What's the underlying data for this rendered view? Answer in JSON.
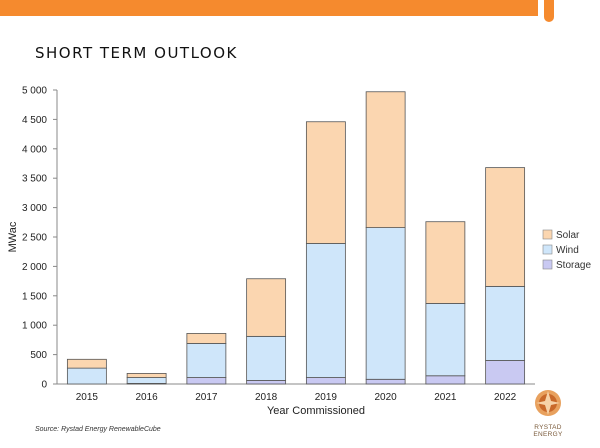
{
  "header": {
    "title": "SHORT TERM OUTLOOK"
  },
  "chart_data": {
    "type": "bar",
    "stacked": true,
    "categories": [
      "2015",
      "2016",
      "2017",
      "2018",
      "2019",
      "2020",
      "2021",
      "2022"
    ],
    "series": [
      {
        "name": "Storage",
        "color": "#c9c9f2",
        "values": [
          0,
          10,
          110,
          60,
          110,
          80,
          140,
          400
        ]
      },
      {
        "name": "Wind",
        "color": "#cfe6fa",
        "values": [
          270,
          100,
          580,
          750,
          2280,
          2580,
          1230,
          1260
        ]
      },
      {
        "name": "Solar",
        "color": "#fbd6b0",
        "values": [
          150,
          70,
          170,
          980,
          2070,
          2310,
          1390,
          2020
        ]
      }
    ],
    "xlabel": "Year Commissioned",
    "ylabel": "MWac",
    "ylim": [
      0,
      5000
    ],
    "yticks": [
      "0",
      "500",
      "1 000",
      "1 500",
      "2 000",
      "2 500",
      "3 000",
      "3 500",
      "4 000",
      "4 500",
      "5 000"
    ],
    "legend": {
      "position": "right",
      "order": [
        "Solar",
        "Wind",
        "Storage"
      ]
    },
    "grid": false
  },
  "footer": {
    "source": "Source: Rystad Energy RenewableCube",
    "logo_text": "RYSTAD ENERGY"
  }
}
